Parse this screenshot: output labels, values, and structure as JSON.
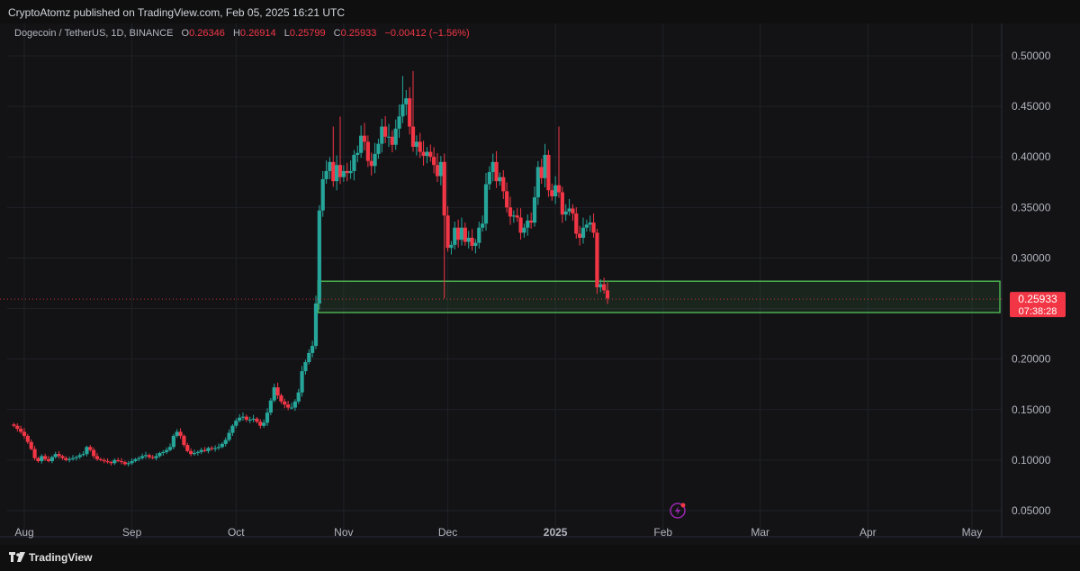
{
  "header": {
    "published": "CryptoAtomz published on TradingView.com, Feb 05, 2025 16:21 UTC"
  },
  "symbol": {
    "name": "Dogecoin / TetherUS, 1D, BINANCE",
    "o_label": "O",
    "o_value": "0.26346",
    "h_label": "H",
    "h_value": "0.26914",
    "l_label": "L",
    "l_value": "0.25799",
    "c_label": "C",
    "c_value": "0.25933",
    "change": "−0.00412 (−1.56%)"
  },
  "price_tag": {
    "price": "0.25933",
    "countdown": "07:38:28"
  },
  "footer": {
    "brand": "TradingView"
  },
  "colors": {
    "up": "#26a69a",
    "down": "#f23645",
    "zone": "#4caf50",
    "background": "#131316"
  },
  "chart_data": {
    "type": "candlestick",
    "y_ticks": [
      "0.50000",
      "0.45000",
      "0.40000",
      "0.35000",
      "0.30000",
      "0.25000",
      "0.20000",
      "0.15000",
      "0.10000",
      "0.05000"
    ],
    "x_ticks": [
      "Aug",
      "Sep",
      "Oct",
      "Nov",
      "Dec",
      "2025",
      "Feb",
      "Mar",
      "Apr",
      "May"
    ],
    "ylim": [
      0.05,
      0.5
    ],
    "support_zone": [
      0.246,
      0.277
    ],
    "last_price": 0.25933,
    "close_series": {
      "start": "2024-07-29",
      "end": "2025-02-05",
      "values": [
        0.134,
        0.131,
        0.128,
        0.124,
        0.118,
        0.111,
        0.102,
        0.099,
        0.104,
        0.101,
        0.099,
        0.103,
        0.106,
        0.104,
        0.102,
        0.1,
        0.101,
        0.102,
        0.103,
        0.105,
        0.106,
        0.113,
        0.11,
        0.104,
        0.101,
        0.1,
        0.099,
        0.098,
        0.097,
        0.1,
        0.099,
        0.098,
        0.096,
        0.097,
        0.099,
        0.101,
        0.102,
        0.104,
        0.105,
        0.103,
        0.102,
        0.104,
        0.107,
        0.108,
        0.11,
        0.113,
        0.124,
        0.128,
        0.124,
        0.115,
        0.109,
        0.106,
        0.107,
        0.108,
        0.11,
        0.109,
        0.112,
        0.111,
        0.112,
        0.113,
        0.116,
        0.12,
        0.127,
        0.134,
        0.139,
        0.142,
        0.143,
        0.14,
        0.14,
        0.141,
        0.138,
        0.134,
        0.137,
        0.147,
        0.159,
        0.172,
        0.164,
        0.158,
        0.155,
        0.152,
        0.152,
        0.158,
        0.167,
        0.188,
        0.197,
        0.206,
        0.213,
        0.255,
        0.347,
        0.378,
        0.386,
        0.395,
        0.376,
        0.392,
        0.38,
        0.386,
        0.384,
        0.386,
        0.402,
        0.404,
        0.421,
        0.415,
        0.396,
        0.391,
        0.403,
        0.413,
        0.43,
        0.42,
        0.42,
        0.412,
        0.428,
        0.44,
        0.452,
        0.458,
        0.43,
        0.41,
        0.415,
        0.405,
        0.401,
        0.405,
        0.4,
        0.392,
        0.381,
        0.395,
        0.342,
        0.31,
        0.313,
        0.33,
        0.318,
        0.33,
        0.316,
        0.32,
        0.312,
        0.315,
        0.33,
        0.334,
        0.373,
        0.385,
        0.395,
        0.376,
        0.38,
        0.366,
        0.35,
        0.341,
        0.342,
        0.34,
        0.325,
        0.33,
        0.337,
        0.335,
        0.36,
        0.39,
        0.379,
        0.402,
        0.367,
        0.361,
        0.372,
        0.365,
        0.343,
        0.346,
        0.349,
        0.344,
        0.324,
        0.32,
        0.33,
        0.333,
        0.335,
        0.325,
        0.271,
        0.274,
        0.268,
        0.26
      ]
    }
  }
}
